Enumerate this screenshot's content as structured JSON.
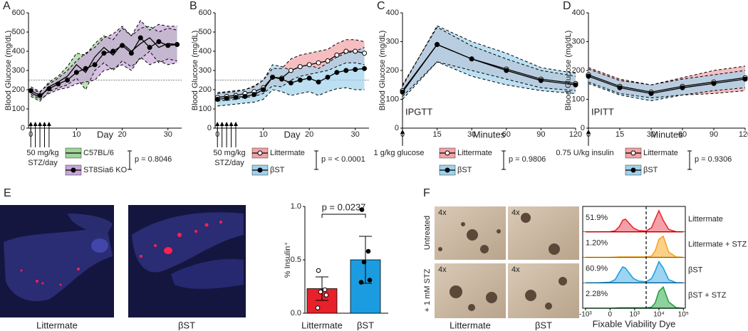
{
  "chart_data": [
    {
      "type": "line",
      "panel": "A",
      "ylabel": "Blood Glucose (mg/dL)",
      "xlabel": "Day",
      "xlim": [
        -0.5,
        33
      ],
      "xticks": [
        0,
        10,
        20,
        30
      ],
      "ylim": [
        0,
        600
      ],
      "yticks": [
        0,
        100,
        200,
        300,
        400,
        500,
        600
      ],
      "threshold": 250,
      "dose_days": [
        0,
        1,
        2,
        3,
        4
      ],
      "treatment": [
        "50 mg/kg",
        "STZ/day"
      ],
      "p_value": "p = 0.8046",
      "x": [
        0,
        2,
        4,
        6,
        8,
        10,
        12,
        14,
        16,
        18,
        20,
        22,
        24,
        26,
        28,
        30,
        32
      ],
      "series": [
        {
          "name": "C57BL/6",
          "color": "#9fd49a",
          "marker": "none",
          "values": [
            185,
            160,
            215,
            240,
            270,
            330,
            290,
            370,
            420,
            380,
            440,
            400,
            440,
            470,
            420,
            440,
            435
          ],
          "lower": [
            165,
            140,
            190,
            210,
            225,
            260,
            200,
            300,
            340,
            300,
            350,
            320,
            360,
            400,
            340,
            360,
            350
          ],
          "upper": [
            205,
            185,
            240,
            270,
            320,
            390,
            380,
            440,
            480,
            460,
            520,
            480,
            520,
            530,
            500,
            520,
            510
          ]
        },
        {
          "name": "ST8Sia6 KO",
          "color": "#c7a5d9",
          "marker": "filled",
          "values": [
            195,
            170,
            205,
            230,
            250,
            290,
            310,
            330,
            390,
            400,
            430,
            390,
            470,
            420,
            450,
            430,
            435
          ],
          "lower": [
            175,
            150,
            180,
            200,
            210,
            230,
            240,
            250,
            300,
            310,
            330,
            300,
            370,
            330,
            350,
            330,
            340
          ],
          "upper": [
            215,
            190,
            230,
            260,
            300,
            350,
            390,
            420,
            470,
            490,
            530,
            480,
            560,
            510,
            540,
            530,
            530
          ]
        }
      ]
    },
    {
      "type": "line",
      "panel": "B",
      "ylabel": "Blood Glucose (mg/dL)",
      "xlabel": "Day",
      "xlim": [
        -0.5,
        33
      ],
      "xticks": [
        0,
        10,
        20,
        30
      ],
      "ylim": [
        0,
        600
      ],
      "yticks": [
        0,
        100,
        200,
        300,
        400,
        500,
        600
      ],
      "threshold": 250,
      "dose_days": [
        0,
        1,
        2,
        3,
        4
      ],
      "treatment": [
        "50 mg/kg",
        "STZ/day"
      ],
      "p_value": "p = < 0.0001",
      "x": [
        0,
        2,
        4,
        6,
        8,
        10,
        12,
        14,
        16,
        18,
        20,
        22,
        24,
        26,
        28,
        30,
        32
      ],
      "series": [
        {
          "name": "Littermate",
          "color": "#f2a3a6",
          "marker": "open",
          "values": [
            160,
            165,
            170,
            180,
            190,
            210,
            265,
            260,
            300,
            320,
            330,
            340,
            350,
            380,
            400,
            400,
            390
          ],
          "lower": [
            140,
            145,
            150,
            160,
            165,
            180,
            220,
            215,
            250,
            270,
            280,
            290,
            300,
            320,
            340,
            340,
            330
          ],
          "upper": [
            180,
            185,
            190,
            200,
            220,
            250,
            310,
            310,
            360,
            380,
            390,
            400,
            410,
            440,
            460,
            460,
            450
          ]
        },
        {
          "name": "βST",
          "color": "#9fd3ec",
          "marker": "filled",
          "values": [
            150,
            155,
            160,
            165,
            175,
            200,
            265,
            255,
            235,
            250,
            260,
            240,
            265,
            290,
            300,
            305,
            310
          ],
          "lower": [
            115,
            120,
            125,
            130,
            135,
            150,
            200,
            190,
            170,
            180,
            190,
            170,
            190,
            205,
            210,
            200,
            200
          ],
          "upper": [
            185,
            190,
            195,
            200,
            215,
            250,
            330,
            320,
            300,
            320,
            330,
            310,
            340,
            370,
            390,
            400,
            420
          ]
        }
      ]
    },
    {
      "type": "line",
      "panel": "C",
      "ylabel": "Blood Glucose (mg/dL)",
      "xlabel": "Minutes",
      "annotation": "IPGTT",
      "ylim": [
        0,
        400
      ],
      "yticks": [
        0,
        100,
        200,
        300,
        400
      ],
      "treatment": [
        "1 g/kg glucose"
      ],
      "p_value": "p = 0.9806",
      "categories": [
        "0",
        "15",
        "30",
        "60",
        "90",
        "120"
      ],
      "series": [
        {
          "name": "Littermate",
          "color": "#f2a3a6",
          "marker": "open",
          "values": [
            130,
            290,
            240,
            205,
            170,
            155
          ],
          "lower": [
            110,
            230,
            200,
            170,
            140,
            130
          ],
          "upper": [
            150,
            350,
            285,
            240,
            200,
            180
          ]
        },
        {
          "name": "βST",
          "color": "#9fd3ec",
          "marker": "filled",
          "values": [
            125,
            290,
            240,
            200,
            165,
            150
          ],
          "lower": [
            100,
            230,
            180,
            150,
            130,
            120
          ],
          "upper": [
            145,
            355,
            300,
            260,
            210,
            190
          ]
        }
      ]
    },
    {
      "type": "line",
      "panel": "D",
      "ylabel": "Blood Glucose (mg/dL)",
      "xlabel": "Minutes",
      "annotation": "IPITT",
      "ylim": [
        0,
        400
      ],
      "yticks": [
        0,
        100,
        200,
        300,
        400
      ],
      "treatment": [
        "0.75 U/kg insulin"
      ],
      "p_value": "p = 0.9306",
      "categories": [
        "0",
        "15",
        "30",
        "60",
        "90",
        "120"
      ],
      "series": [
        {
          "name": "Littermate",
          "color": "#f2a3a6",
          "marker": "open",
          "values": [
            185,
            145,
            125,
            145,
            160,
            175
          ],
          "lower": [
            160,
            120,
            105,
            115,
            120,
            130
          ],
          "upper": [
            210,
            170,
            150,
            175,
            200,
            215
          ]
        },
        {
          "name": "βST",
          "color": "#9fd3ec",
          "marker": "filled",
          "values": [
            180,
            140,
            120,
            140,
            155,
            170
          ],
          "lower": [
            155,
            115,
            95,
            115,
            130,
            140
          ],
          "upper": [
            205,
            165,
            150,
            170,
            185,
            200
          ]
        }
      ]
    },
    {
      "type": "bar",
      "panel": "E",
      "image_labels": [
        "Littermate",
        "βST"
      ],
      "ylabel": "% Insulin⁺",
      "categories": [
        "Littermate",
        "βST"
      ],
      "values": [
        0.23,
        0.5
      ],
      "errors": [
        0.11,
        0.22
      ],
      "colors": [
        "#e8202a",
        "#1b9ce0"
      ],
      "points": [
        [
          0.4,
          0.22,
          0.2,
          0.17,
          0.05
        ],
        [
          0.97,
          0.58,
          0.48,
          0.31,
          0.29
        ]
      ],
      "point_styles": [
        "open",
        "filled"
      ],
      "ylim": [
        0,
        1
      ],
      "yticks": [
        {
          "value": 0,
          "label": "0.0"
        },
        {
          "value": 0.5,
          "label": "0.5"
        },
        {
          "value": 1,
          "label": "1.0"
        }
      ],
      "p_value": "p = 0.0237"
    },
    {
      "type": "density",
      "panel": "F",
      "row_labels": [
        "Untreated",
        "+ 1 mM STZ"
      ],
      "magnification": "4x",
      "image_labels": [
        "Littermate",
        "βST"
      ],
      "xlabel": "Fixable Viability Dye",
      "xscale": "asinh",
      "xlim": [
        -1300,
        120000
      ],
      "xticks": [
        {
          "value": -1000,
          "label": "-10³"
        },
        0,
        {
          "value": 1000,
          "label": "10³"
        },
        {
          "value": 10000,
          "label": "10⁴"
        },
        {
          "value": 100000,
          "label": "10⁵"
        }
      ],
      "gate": 3000,
      "x": [
        -1000,
        -300,
        0,
        100,
        200,
        300,
        400,
        600,
        900,
        1500,
        3000,
        5000,
        7000,
        10000,
        15000,
        25000,
        50000,
        100000
      ],
      "series": [
        {
          "name": "Littermate",
          "color": "#e8202a",
          "fill": "#f4a0a8",
          "percent": 51.9,
          "percent_label": "51.9%",
          "values": [
            0,
            0,
            1,
            5,
            25,
            55,
            60,
            40,
            18,
            6,
            4,
            20,
            60,
            100,
            55,
            12,
            1,
            0
          ]
        },
        {
          "name": "Littermate + STZ",
          "color": "#f5a11f",
          "fill": "#fbd08a",
          "percent": 1.2,
          "percent_label": "1.20%",
          "values": [
            0,
            0,
            0,
            1,
            2,
            2,
            2,
            2,
            2,
            2,
            2,
            6,
            30,
            85,
            100,
            25,
            2,
            0
          ]
        },
        {
          "name": "βST",
          "color": "#1b9ce0",
          "fill": "#9dd4f2",
          "percent": 60.9,
          "percent_label": "60.9%",
          "values": [
            0,
            0,
            3,
            15,
            50,
            75,
            70,
            45,
            20,
            8,
            5,
            20,
            55,
            100,
            70,
            15,
            1,
            0
          ]
        },
        {
          "name": "βST + STZ",
          "color": "#1a9b3e",
          "fill": "#8fd19e",
          "percent": 2.28,
          "percent_label": "2.28%",
          "values": [
            0,
            0,
            0,
            1,
            2,
            2,
            2,
            2,
            2,
            2,
            2,
            5,
            25,
            80,
            100,
            30,
            3,
            0
          ]
        }
      ]
    }
  ]
}
